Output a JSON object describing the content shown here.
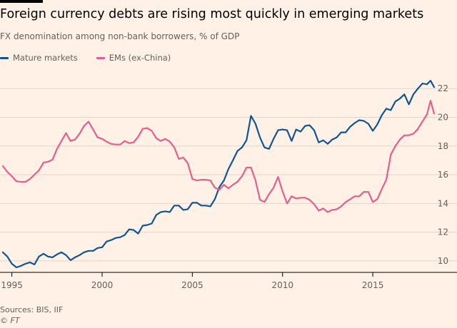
{
  "header": {
    "title": "Foreign currency debts are rising most quickly in emerging markets",
    "subtitle": "FX denomination among non-bank borrowers, % of GDP"
  },
  "footer": {
    "source": "Sources: BIS, IIF",
    "credit": "© FT"
  },
  "chart_data": {
    "type": "line",
    "title": "Foreign currency debts are rising most quickly in emerging markets",
    "subtitle": "FX denomination among non-bank borrowers, % of GDP",
    "xlabel": "",
    "ylabel": "",
    "xlim": [
      1994.5,
      2018.4
    ],
    "ylim": [
      9.2,
      23.4
    ],
    "x_ticks": [
      1995,
      2000,
      2005,
      2010,
      2015
    ],
    "x_tick_labels": [
      "1995",
      "2000",
      "2005",
      "2010",
      "2015"
    ],
    "y_ticks": [
      10,
      12,
      14,
      16,
      18,
      20,
      22
    ],
    "y_tick_labels": [
      "10",
      "12",
      "14",
      "16",
      "18",
      "20",
      "22"
    ],
    "y_axis_side": "right",
    "grid": "horizontal",
    "legend_position": "top-left",
    "colors": {
      "Mature markets": "#0f5499",
      "EMs (ex-China)": "#e95d8c",
      "grid": "#e3d6c9",
      "axis": "#000000"
    },
    "series": [
      {
        "name": "Mature markets",
        "color": "#0f5499",
        "points": [
          [
            1994.5,
            10.6
          ],
          [
            1994.75,
            10.3
          ],
          [
            1995.0,
            9.8
          ],
          [
            1995.25,
            9.55
          ],
          [
            1995.5,
            9.65
          ],
          [
            1995.75,
            9.8
          ],
          [
            1996.0,
            9.9
          ],
          [
            1996.25,
            9.75
          ],
          [
            1996.5,
            10.3
          ],
          [
            1996.75,
            10.5
          ],
          [
            1997.0,
            10.3
          ],
          [
            1997.25,
            10.25
          ],
          [
            1997.5,
            10.45
          ],
          [
            1997.75,
            10.6
          ],
          [
            1998.0,
            10.4
          ],
          [
            1998.25,
            10.05
          ],
          [
            1998.5,
            10.25
          ],
          [
            1998.75,
            10.4
          ],
          [
            1999.0,
            10.6
          ],
          [
            1999.25,
            10.7
          ],
          [
            1999.5,
            10.7
          ],
          [
            1999.75,
            10.9
          ],
          [
            2000.0,
            10.95
          ],
          [
            2000.25,
            11.35
          ],
          [
            2000.5,
            11.45
          ],
          [
            2000.75,
            11.6
          ],
          [
            2001.0,
            11.65
          ],
          [
            2001.25,
            11.8
          ],
          [
            2001.5,
            12.2
          ],
          [
            2001.75,
            12.15
          ],
          [
            2002.0,
            11.9
          ],
          [
            2002.25,
            12.45
          ],
          [
            2002.5,
            12.5
          ],
          [
            2002.75,
            12.6
          ],
          [
            2003.0,
            13.2
          ],
          [
            2003.25,
            13.4
          ],
          [
            2003.5,
            13.45
          ],
          [
            2003.75,
            13.4
          ],
          [
            2004.0,
            13.85
          ],
          [
            2004.25,
            13.85
          ],
          [
            2004.5,
            13.55
          ],
          [
            2004.75,
            13.6
          ],
          [
            2005.0,
            14.05
          ],
          [
            2005.25,
            14.05
          ],
          [
            2005.5,
            13.85
          ],
          [
            2005.75,
            13.85
          ],
          [
            2006.0,
            13.8
          ],
          [
            2006.25,
            14.3
          ],
          [
            2006.5,
            15.15
          ],
          [
            2006.75,
            15.6
          ],
          [
            2007.0,
            16.4
          ],
          [
            2007.25,
            17.0
          ],
          [
            2007.5,
            17.65
          ],
          [
            2007.75,
            17.9
          ],
          [
            2008.0,
            18.4
          ],
          [
            2008.25,
            20.1
          ],
          [
            2008.5,
            19.55
          ],
          [
            2008.75,
            18.6
          ],
          [
            2009.0,
            17.9
          ],
          [
            2009.25,
            17.8
          ],
          [
            2009.5,
            18.5
          ],
          [
            2009.75,
            19.1
          ],
          [
            2010.0,
            19.15
          ],
          [
            2010.25,
            19.1
          ],
          [
            2010.5,
            18.35
          ],
          [
            2010.75,
            19.15
          ],
          [
            2011.0,
            19.0
          ],
          [
            2011.25,
            19.4
          ],
          [
            2011.5,
            19.45
          ],
          [
            2011.75,
            19.1
          ],
          [
            2012.0,
            18.25
          ],
          [
            2012.25,
            18.4
          ],
          [
            2012.5,
            18.15
          ],
          [
            2012.75,
            18.45
          ],
          [
            2013.0,
            18.6
          ],
          [
            2013.25,
            18.95
          ],
          [
            2013.5,
            18.95
          ],
          [
            2013.75,
            19.35
          ],
          [
            2014.0,
            19.6
          ],
          [
            2014.25,
            19.8
          ],
          [
            2014.5,
            19.75
          ],
          [
            2014.75,
            19.55
          ],
          [
            2015.0,
            19.05
          ],
          [
            2015.25,
            19.5
          ],
          [
            2015.5,
            20.15
          ],
          [
            2015.75,
            20.6
          ],
          [
            2016.0,
            20.5
          ],
          [
            2016.25,
            21.1
          ],
          [
            2016.5,
            21.3
          ],
          [
            2016.75,
            21.6
          ],
          [
            2017.0,
            20.9
          ],
          [
            2017.25,
            21.6
          ],
          [
            2017.5,
            22.0
          ],
          [
            2017.75,
            22.35
          ],
          [
            2018.0,
            22.3
          ],
          [
            2018.2,
            22.55
          ],
          [
            2018.4,
            22.1
          ]
        ]
      },
      {
        "name": "EMs (ex-China)",
        "color": "#e95d8c",
        "points": [
          [
            1994.5,
            16.6
          ],
          [
            1994.75,
            16.2
          ],
          [
            1995.0,
            15.9
          ],
          [
            1995.25,
            15.55
          ],
          [
            1995.5,
            15.5
          ],
          [
            1995.75,
            15.5
          ],
          [
            1996.0,
            15.7
          ],
          [
            1996.25,
            16.0
          ],
          [
            1996.5,
            16.3
          ],
          [
            1996.75,
            16.85
          ],
          [
            1997.0,
            16.9
          ],
          [
            1997.25,
            17.05
          ],
          [
            1997.5,
            17.8
          ],
          [
            1997.75,
            18.35
          ],
          [
            1998.0,
            18.9
          ],
          [
            1998.25,
            18.35
          ],
          [
            1998.5,
            18.45
          ],
          [
            1998.75,
            18.85
          ],
          [
            1999.0,
            19.4
          ],
          [
            1999.25,
            19.7
          ],
          [
            1999.5,
            19.15
          ],
          [
            1999.75,
            18.6
          ],
          [
            2000.0,
            18.5
          ],
          [
            2000.25,
            18.3
          ],
          [
            2000.5,
            18.15
          ],
          [
            2000.75,
            18.1
          ],
          [
            2001.0,
            18.1
          ],
          [
            2001.25,
            18.35
          ],
          [
            2001.5,
            18.2
          ],
          [
            2001.75,
            18.25
          ],
          [
            2002.0,
            18.65
          ],
          [
            2002.25,
            19.2
          ],
          [
            2002.5,
            19.25
          ],
          [
            2002.75,
            19.05
          ],
          [
            2003.0,
            18.55
          ],
          [
            2003.25,
            18.35
          ],
          [
            2003.5,
            18.5
          ],
          [
            2003.75,
            18.3
          ],
          [
            2004.0,
            17.9
          ],
          [
            2004.25,
            17.1
          ],
          [
            2004.5,
            17.2
          ],
          [
            2004.75,
            16.8
          ],
          [
            2005.0,
            15.7
          ],
          [
            2005.25,
            15.6
          ],
          [
            2005.5,
            15.65
          ],
          [
            2005.75,
            15.65
          ],
          [
            2006.0,
            15.6
          ],
          [
            2006.25,
            15.1
          ],
          [
            2006.5,
            14.95
          ],
          [
            2006.75,
            15.3
          ],
          [
            2007.0,
            15.05
          ],
          [
            2007.25,
            15.3
          ],
          [
            2007.5,
            15.5
          ],
          [
            2007.75,
            15.9
          ],
          [
            2008.0,
            16.5
          ],
          [
            2008.25,
            16.5
          ],
          [
            2008.5,
            15.6
          ],
          [
            2008.75,
            14.25
          ],
          [
            2009.0,
            14.1
          ],
          [
            2009.25,
            14.65
          ],
          [
            2009.5,
            15.1
          ],
          [
            2009.75,
            15.85
          ],
          [
            2010.0,
            14.85
          ],
          [
            2010.25,
            14.0
          ],
          [
            2010.5,
            14.5
          ],
          [
            2010.75,
            14.35
          ],
          [
            2011.0,
            14.4
          ],
          [
            2011.25,
            14.4
          ],
          [
            2011.5,
            14.25
          ],
          [
            2011.75,
            13.95
          ],
          [
            2012.0,
            13.5
          ],
          [
            2012.25,
            13.65
          ],
          [
            2012.5,
            13.4
          ],
          [
            2012.75,
            13.55
          ],
          [
            2013.0,
            13.6
          ],
          [
            2013.25,
            13.8
          ],
          [
            2013.5,
            14.1
          ],
          [
            2013.75,
            14.3
          ],
          [
            2014.0,
            14.5
          ],
          [
            2014.25,
            14.5
          ],
          [
            2014.5,
            14.8
          ],
          [
            2014.75,
            14.8
          ],
          [
            2015.0,
            14.1
          ],
          [
            2015.25,
            14.3
          ],
          [
            2015.5,
            15.0
          ],
          [
            2015.75,
            15.65
          ],
          [
            2016.0,
            17.4
          ],
          [
            2016.25,
            18.0
          ],
          [
            2016.5,
            18.45
          ],
          [
            2016.75,
            18.75
          ],
          [
            2017.0,
            18.75
          ],
          [
            2017.25,
            18.85
          ],
          [
            2017.5,
            19.2
          ],
          [
            2017.75,
            19.7
          ],
          [
            2018.0,
            20.2
          ],
          [
            2018.2,
            21.15
          ],
          [
            2018.4,
            20.25
          ]
        ]
      }
    ]
  }
}
